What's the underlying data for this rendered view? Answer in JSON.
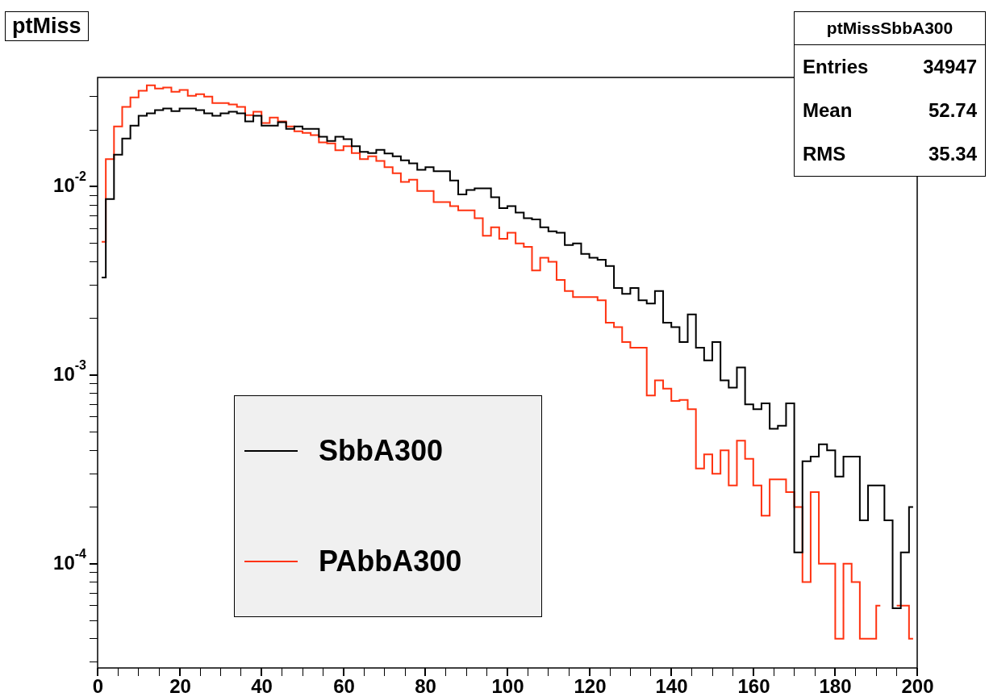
{
  "chart_data": {
    "type": "step",
    "title": "ptMiss",
    "x": [
      1,
      3,
      5,
      7,
      9,
      11,
      13,
      15,
      17,
      19,
      21,
      23,
      25,
      27,
      29,
      31,
      33,
      35,
      37,
      39,
      41,
      43,
      45,
      47,
      49,
      51,
      53,
      55,
      57,
      59,
      61,
      63,
      65,
      67,
      69,
      71,
      73,
      75,
      77,
      79,
      81,
      83,
      85,
      87,
      89,
      91,
      93,
      95,
      97,
      99,
      101,
      103,
      105,
      107,
      109,
      111,
      113,
      115,
      117,
      119,
      121,
      123,
      125,
      127,
      129,
      131,
      133,
      135,
      137,
      139,
      141,
      143,
      145,
      147,
      149,
      151,
      153,
      155,
      157,
      159,
      161,
      163,
      165,
      167,
      169,
      171,
      173,
      175,
      177,
      179,
      181,
      183,
      185,
      187,
      189,
      191,
      193,
      195,
      197,
      199
    ],
    "series": [
      {
        "name": "SbbA300",
        "color": "#000000",
        "values": [
          0.0033,
          0.0086,
          0.0148,
          0.018,
          0.0211,
          0.0238,
          0.0245,
          0.0255,
          0.026,
          0.0252,
          0.026,
          0.026,
          0.0255,
          0.0245,
          0.0238,
          0.0245,
          0.025,
          0.0245,
          0.0222,
          0.0238,
          0.0211,
          0.0211,
          0.022,
          0.0203,
          0.0209,
          0.0203,
          0.0203,
          0.0184,
          0.0175,
          0.0184,
          0.0179,
          0.0164,
          0.0153,
          0.0151,
          0.0157,
          0.015,
          0.0145,
          0.0138,
          0.0133,
          0.0123,
          0.0127,
          0.0121,
          0.0121,
          0.0108,
          0.0091,
          0.0096,
          0.0098,
          0.0098,
          0.0088,
          0.0077,
          0.0079,
          0.0073,
          0.0068,
          0.0067,
          0.0061,
          0.0058,
          0.0057,
          0.0049,
          0.005,
          0.0044,
          0.0042,
          0.0041,
          0.0038,
          0.0029,
          0.0027,
          0.0029,
          0.0025,
          0.0024,
          0.0028,
          0.0019,
          0.0018,
          0.0015,
          0.0021,
          0.0014,
          0.0012,
          0.0015,
          0.00094,
          0.00086,
          0.0011,
          0.0007,
          0.00066,
          0.00071,
          0.00052,
          0.00054,
          0.00071,
          0.000115,
          0.00035,
          0.00037,
          0.00043,
          0.0004,
          0.00029,
          0.00037,
          0.00037,
          0.00017,
          0.00026,
          0.00026,
          0.00017,
          5.8e-05,
          0.000115,
          0.0002
        ]
      },
      {
        "name": "PAbbA300",
        "color": "#ff3311",
        "values": [
          0.0051,
          0.014,
          0.0209,
          0.0265,
          0.0298,
          0.0323,
          0.0345,
          0.0332,
          0.0336,
          0.0319,
          0.0326,
          0.0304,
          0.031,
          0.0301,
          0.0278,
          0.0278,
          0.0273,
          0.0265,
          0.024,
          0.025,
          0.0218,
          0.0233,
          0.0222,
          0.0209,
          0.0197,
          0.0193,
          0.0188,
          0.0172,
          0.017,
          0.0156,
          0.0164,
          0.0151,
          0.014,
          0.0145,
          0.0137,
          0.0127,
          0.0118,
          0.0106,
          0.0109,
          0.0095,
          0.0095,
          0.0083,
          0.0083,
          0.0079,
          0.0075,
          0.0075,
          0.0068,
          0.0055,
          0.0061,
          0.0053,
          0.0057,
          0.005,
          0.0048,
          0.0036,
          0.0042,
          0.004,
          0.0032,
          0.0028,
          0.0026,
          0.0026,
          0.0026,
          0.0025,
          0.0019,
          0.0018,
          0.0015,
          0.0014,
          0.0014,
          0.00078,
          0.00094,
          0.00085,
          0.00073,
          0.00074,
          0.00066,
          0.00032,
          0.00038,
          0.0003,
          0.0004,
          0.00026,
          0.00045,
          0.00036,
          0.00026,
          0.00018,
          0.00028,
          0.00028,
          0.00024,
          0.0002,
          8e-05,
          0.00024,
          0.0001,
          0.0001,
          4e-05,
          0.0001,
          8e-05,
          4e-05,
          4e-05,
          6e-05,
          null,
          6e-05,
          6e-05,
          4e-05
        ]
      }
    ],
    "xlim": [
      0,
      200
    ],
    "xticks": [
      0,
      {
        "value": 5,
        "label": null
      },
      {
        "value": 10,
        "label": null
      },
      {
        "value": 15,
        "label": null
      },
      20,
      {
        "value": 25,
        "label": null
      },
      {
        "value": 30,
        "label": null
      },
      {
        "value": 35,
        "label": null
      },
      40,
      {
        "value": 45,
        "label": null
      },
      {
        "value": 50,
        "label": null
      },
      {
        "value": 55,
        "label": null
      },
      60,
      {
        "value": 65,
        "label": null
      },
      {
        "value": 70,
        "label": null
      },
      {
        "value": 75,
        "label": null
      },
      80,
      {
        "value": 85,
        "label": null
      },
      {
        "value": 90,
        "label": null
      },
      {
        "value": 95,
        "label": null
      },
      100,
      {
        "value": 105,
        "label": null
      },
      {
        "value": 110,
        "label": null
      },
      {
        "value": 115,
        "label": null
      },
      120,
      {
        "value": 125,
        "label": null
      },
      {
        "value": 130,
        "label": null
      },
      {
        "value": 135,
        "label": null
      },
      140,
      {
        "value": 145,
        "label": null
      },
      {
        "value": 150,
        "label": null
      },
      {
        "value": 155,
        "label": null
      },
      160,
      {
        "value": 165,
        "label": null
      },
      {
        "value": 170,
        "label": null
      },
      {
        "value": 175,
        "label": null
      },
      180,
      {
        "value": 185,
        "label": null
      },
      {
        "value": 190,
        "label": null
      },
      {
        "value": 195,
        "label": null
      },
      200
    ],
    "ylim": [
      2.8e-05,
      0.038
    ],
    "yticks": [
      {
        "value": 3e-05,
        "label": null
      },
      {
        "value": 4e-05,
        "label": null
      },
      {
        "value": 5e-05,
        "label": null
      },
      {
        "value": 6e-05,
        "label": null
      },
      {
        "value": 7e-05,
        "label": null
      },
      {
        "value": 8e-05,
        "label": null
      },
      {
        "value": 9e-05,
        "label": null
      },
      {
        "value": 0.0001,
        "label": "10$^{-4}$"
      },
      {
        "value": 0.0002,
        "label": null
      },
      {
        "value": 0.0003,
        "label": null
      },
      {
        "value": 0.0004,
        "label": null
      },
      {
        "value": 0.0005,
        "label": null
      },
      {
        "value": 0.0006,
        "label": null
      },
      {
        "value": 0.0007,
        "label": null
      },
      {
        "value": 0.0008,
        "label": null
      },
      {
        "value": 0.0009,
        "label": null
      },
      {
        "value": 0.001,
        "label": "10$^{-3}$"
      },
      {
        "value": 0.002,
        "label": null
      },
      {
        "value": 0.003,
        "label": null
      },
      {
        "value": 0.004,
        "label": null
      },
      {
        "value": 0.005,
        "label": null
      },
      {
        "value": 0.006,
        "label": null
      },
      {
        "value": 0.007,
        "label": null
      },
      {
        "value": 0.008,
        "label": null
      },
      {
        "value": 0.009,
        "label": null
      },
      {
        "value": 0.01,
        "label": "10$^{-2}$"
      },
      {
        "value": 0.02,
        "label": null
      },
      {
        "value": 0.03,
        "label": null
      }
    ],
    "log": "y",
    "legend": "bottom left",
    "annotations": [
      "ptMissSbbA300",
      "Entries 34947",
      "Mean 52.74",
      "RMS 35.34"
    ]
  }
}
